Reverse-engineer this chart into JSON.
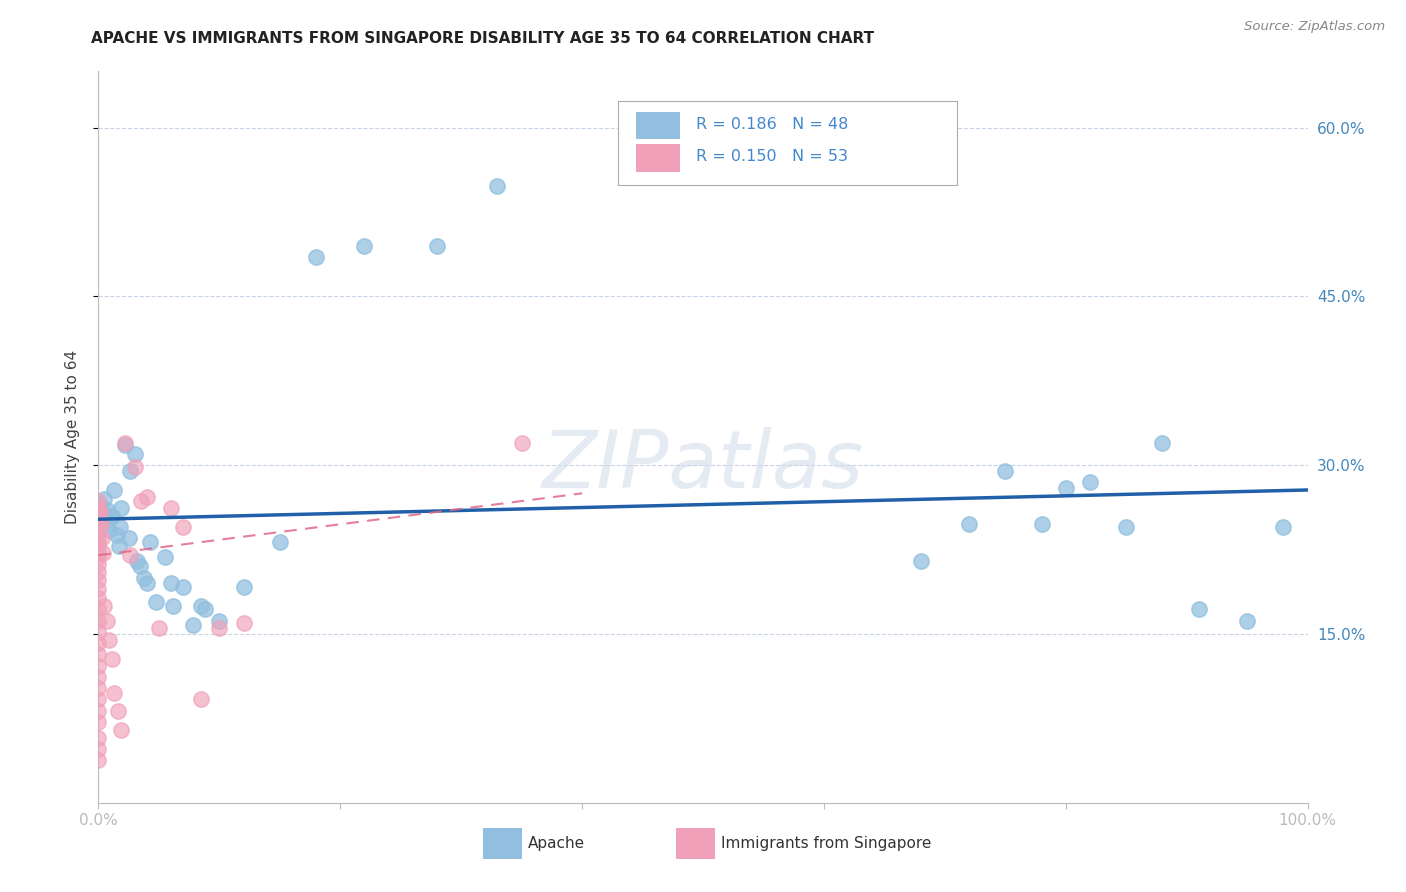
{
  "title": "APACHE VS IMMIGRANTS FROM SINGAPORE DISABILITY AGE 35 TO 64 CORRELATION CHART",
  "source": "Source: ZipAtlas.com",
  "ylabel": "Disability Age 35 to 64",
  "xlim": [
    0.0,
    1.0
  ],
  "ylim": [
    0.0,
    0.65
  ],
  "x_tick_labels": [
    "0.0%",
    "",
    "",
    "",
    "",
    "100.0%"
  ],
  "y_tick_labels": [
    "15.0%",
    "30.0%",
    "45.0%",
    "60.0%"
  ],
  "y_ticks": [
    0.15,
    0.3,
    0.45,
    0.6
  ],
  "legend_R1": "0.186",
  "legend_N1": "48",
  "legend_R2": "0.150",
  "legend_N2": "53",
  "scatter_color_apache": "#92bfdf",
  "scatter_color_singapore": "#f0a0b8",
  "line_color_apache": "#2060a8",
  "line_color_singapore": "#e06888",
  "grid_color": "#c8d4e4",
  "watermark": "ZIPatlas",
  "bg_color": "#ffffff",
  "apache_x": [
    0.001,
    0.003,
    0.005,
    0.007,
    0.009,
    0.011,
    0.013,
    0.015,
    0.017,
    0.019,
    0.022,
    0.026,
    0.03,
    0.034,
    0.038,
    0.043,
    0.048,
    0.055,
    0.062,
    0.07,
    0.078,
    0.088,
    0.1,
    0.12,
    0.15,
    0.18,
    0.22,
    0.28,
    0.33,
    0.68,
    0.72,
    0.75,
    0.78,
    0.8,
    0.82,
    0.85,
    0.88,
    0.91,
    0.95,
    0.98,
    0.005,
    0.01,
    0.018,
    0.025,
    0.032,
    0.04,
    0.06,
    0.085
  ],
  "apache_y": [
    0.265,
    0.252,
    0.248,
    0.26,
    0.242,
    0.255,
    0.278,
    0.238,
    0.228,
    0.262,
    0.318,
    0.295,
    0.31,
    0.21,
    0.2,
    0.232,
    0.178,
    0.218,
    0.175,
    0.192,
    0.158,
    0.172,
    0.162,
    0.192,
    0.232,
    0.485,
    0.495,
    0.495,
    0.548,
    0.215,
    0.248,
    0.295,
    0.248,
    0.28,
    0.285,
    0.245,
    0.32,
    0.172,
    0.162,
    0.245,
    0.27,
    0.255,
    0.245,
    0.235,
    0.215,
    0.195,
    0.195,
    0.175
  ],
  "singapore_x": [
    0.0,
    0.0,
    0.0,
    0.0,
    0.0,
    0.0,
    0.0,
    0.0,
    0.0,
    0.0,
    0.0,
    0.0,
    0.0,
    0.0,
    0.0,
    0.0,
    0.0,
    0.0,
    0.0,
    0.0,
    0.0,
    0.0,
    0.0,
    0.0,
    0.0,
    0.0,
    0.0,
    0.0,
    0.0,
    0.0,
    0.001,
    0.002,
    0.003,
    0.004,
    0.005,
    0.007,
    0.009,
    0.011,
    0.013,
    0.016,
    0.019,
    0.022,
    0.026,
    0.03,
    0.035,
    0.04,
    0.05,
    0.06,
    0.07,
    0.085,
    0.1,
    0.12,
    0.35
  ],
  "singapore_y": [
    0.268,
    0.262,
    0.258,
    0.252,
    0.248,
    0.242,
    0.238,
    0.232,
    0.228,
    0.222,
    0.218,
    0.212,
    0.205,
    0.198,
    0.19,
    0.182,
    0.172,
    0.162,
    0.152,
    0.142,
    0.132,
    0.122,
    0.112,
    0.102,
    0.092,
    0.082,
    0.072,
    0.058,
    0.048,
    0.038,
    0.258,
    0.248,
    0.235,
    0.222,
    0.175,
    0.162,
    0.145,
    0.128,
    0.098,
    0.082,
    0.065,
    0.32,
    0.22,
    0.298,
    0.268,
    0.272,
    0.155,
    0.262,
    0.245,
    0.092,
    0.155,
    0.16,
    0.32
  ],
  "apache_trend_x": [
    0.0,
    1.0
  ],
  "apache_trend_y": [
    0.252,
    0.278
  ],
  "singapore_trend_x": [
    0.0,
    0.4
  ],
  "singapore_trend_y": [
    0.22,
    0.275
  ]
}
